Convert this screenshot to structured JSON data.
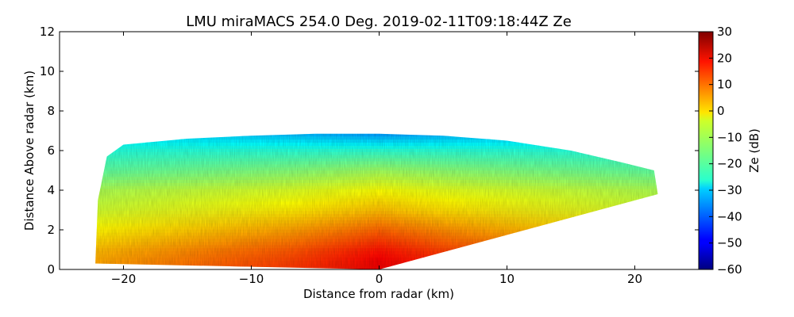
{
  "chart_data": {
    "type": "heatmap",
    "title": "LMU miraMACS 254.0 Deg. 2019-02-11T09:18:44Z  Ze",
    "xlabel": "Distance from radar (km)",
    "ylabel": "Distance Above radar  (km)",
    "xlim": [
      -25,
      25
    ],
    "ylim": [
      0,
      12
    ],
    "x_ticks": [
      "−20",
      "−10",
      "0",
      "10",
      "20"
    ],
    "x_tick_values": [
      -20,
      -10,
      0,
      10,
      20
    ],
    "y_ticks": [
      "0",
      "2",
      "4",
      "6",
      "8",
      "10",
      "12"
    ],
    "y_tick_values": [
      0,
      2,
      4,
      6,
      8,
      10,
      12
    ],
    "grid": false,
    "colormap": "jet",
    "colorbar": {
      "label": "Ze (dB)",
      "range": [
        -60,
        30
      ],
      "ticks": [
        "30",
        "20",
        "10",
        "0",
        "−10",
        "−20",
        "−30",
        "−40",
        "−50",
        "−60"
      ],
      "tick_values": [
        30,
        20,
        10,
        0,
        -10,
        -20,
        -30,
        -40,
        -50,
        -60
      ]
    },
    "echo_region": {
      "outline_km": [
        [
          -22.2,
          0.3
        ],
        [
          -22.0,
          3.5
        ],
        [
          -21.3,
          5.7
        ],
        [
          -20.0,
          6.3
        ],
        [
          -15.0,
          6.6
        ],
        [
          -10.0,
          6.75
        ],
        [
          -5.0,
          6.85
        ],
        [
          0.0,
          6.85
        ],
        [
          5.0,
          6.75
        ],
        [
          10.0,
          6.5
        ],
        [
          15.0,
          6.0
        ],
        [
          19.0,
          5.4
        ],
        [
          21.5,
          5.0
        ],
        [
          21.8,
          3.8
        ],
        [
          0.0,
          0.0
        ],
        [
          -22.2,
          0.3
        ]
      ],
      "reflectivity_profile_dB": [
        {
          "height_km": 0.3,
          "center_Ze": 20,
          "edge_Ze": 4
        },
        {
          "height_km": 1.0,
          "center_Ze": 17,
          "edge_Ze": 2
        },
        {
          "height_km": 2.0,
          "center_Ze": 10,
          "edge_Ze": -3
        },
        {
          "height_km": 3.0,
          "center_Ze": 2,
          "edge_Ze": -8
        },
        {
          "height_km": 4.0,
          "center_Ze": -4,
          "edge_Ze": -11
        },
        {
          "height_km": 5.0,
          "center_Ze": -12,
          "edge_Ze": -18
        },
        {
          "height_km": 6.0,
          "center_Ze": -22,
          "edge_Ze": -23
        },
        {
          "height_km": 6.85,
          "center_Ze": -35,
          "edge_Ze": -28
        }
      ]
    }
  }
}
